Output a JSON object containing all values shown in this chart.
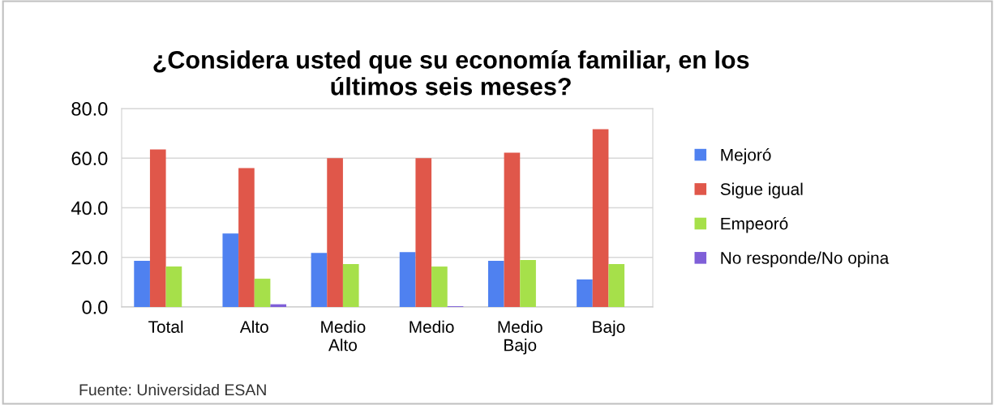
{
  "chart_data": {
    "type": "bar",
    "title": "¿Considera usted que su economía familiar, en los\núltimos seis meses?",
    "categories": [
      "Total",
      "Alto",
      "Medio\nAlto",
      "Medio",
      "Medio\nBajo",
      "Bajo"
    ],
    "series": [
      {
        "name": "Mejoró",
        "color": "#4f81f0",
        "values": [
          18.6,
          29.6,
          21.8,
          22.1,
          18.6,
          11.1
        ]
      },
      {
        "name": "Sigue igual",
        "color": "#e0574a",
        "values": [
          63.5,
          56.0,
          60.0,
          60.0,
          62.2,
          71.7
        ]
      },
      {
        "name": "Empeoró",
        "color": "#a6e04a",
        "values": [
          16.3,
          11.4,
          17.3,
          16.3,
          18.9,
          17.3
        ]
      },
      {
        "name": "No responde/No opina",
        "color": "#7f5fd8",
        "values": [
          0.0,
          1.1,
          0.0,
          0.3,
          0.0,
          0.0
        ]
      }
    ],
    "ylim": [
      0,
      80
    ],
    "yticks": [
      {
        "value": 0,
        "label": "0.0"
      },
      {
        "value": 20,
        "label": "20.0"
      },
      {
        "value": 40,
        "label": "40.0"
      },
      {
        "value": 60,
        "label": "60.0"
      },
      {
        "value": 80,
        "label": "80.0"
      }
    ],
    "grid": "y",
    "legend": "right",
    "annotations": [
      "Fuente: Universidad ESAN"
    ]
  }
}
